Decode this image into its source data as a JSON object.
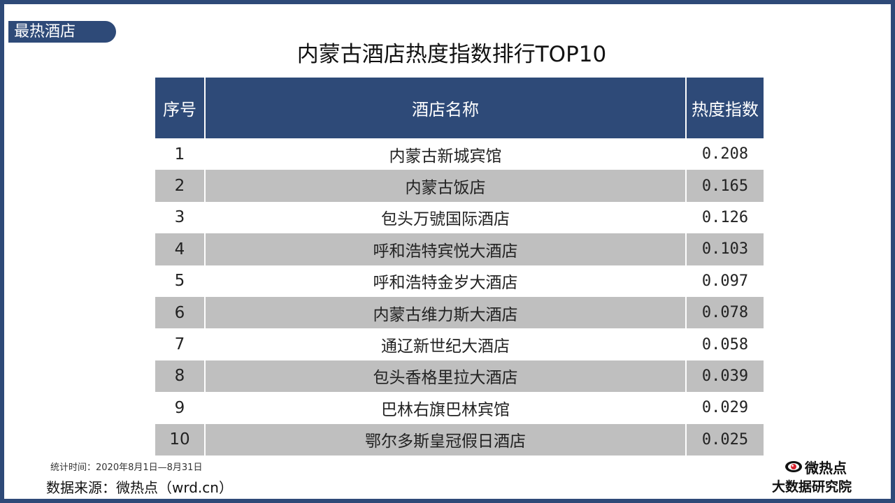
{
  "section_tag": "最热酒店",
  "title": "内蒙古酒店热度指数排行TOP10",
  "table": {
    "headers": [
      "序号",
      "酒店名称",
      "热度指数"
    ],
    "rows": [
      {
        "rank": "1",
        "name": "内蒙古新城宾馆",
        "index": "0.208"
      },
      {
        "rank": "2",
        "name": "内蒙古饭店",
        "index": "0.165"
      },
      {
        "rank": "3",
        "name": "包头万號国际酒店",
        "index": "0.126"
      },
      {
        "rank": "4",
        "name": "呼和浩特宾悦大酒店",
        "index": "0.103"
      },
      {
        "rank": "5",
        "name": "呼和浩特金岁大酒店",
        "index": "0.097"
      },
      {
        "rank": "6",
        "name": "内蒙古维力斯大酒店",
        "index": "0.078"
      },
      {
        "rank": "7",
        "name": "通辽新世纪大酒店",
        "index": "0.058"
      },
      {
        "rank": "8",
        "name": "包头香格里拉大酒店",
        "index": "0.039"
      },
      {
        "rank": "9",
        "name": "巴林右旗巴林宾馆",
        "index": "0.029"
      },
      {
        "rank": "10",
        "name": "鄂尔多斯皇冠假日酒店",
        "index": "0.025"
      }
    ]
  },
  "footer": {
    "stat_time": "统计时间：2020年8月1日—8月31日",
    "source": "数据来源：微热点（wrd.cn）"
  },
  "logo": {
    "name": "微热点",
    "sub": "大数据研究院",
    "icon": "eye-logo-icon"
  },
  "colors": {
    "brand": "#2e4a78",
    "stripe": "#bfbfbf"
  }
}
